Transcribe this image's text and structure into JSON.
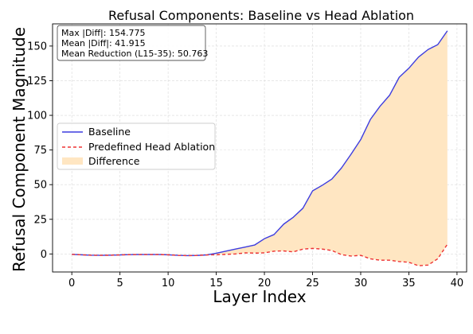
{
  "chart_data": {
    "type": "line",
    "title": "Refusal Components: Baseline vs Head Ablation",
    "xlabel": "Layer Index",
    "ylabel": "Refusal Component Magnitude",
    "xlim": [
      -2,
      41
    ],
    "ylim": [
      -13,
      166
    ],
    "xticks": [
      0,
      5,
      10,
      15,
      20,
      25,
      30,
      35,
      40
    ],
    "yticks": [
      0,
      25,
      50,
      75,
      100,
      125,
      150
    ],
    "grid": true,
    "legend_position": "center-left",
    "stats_box": {
      "position": "top-left",
      "lines": [
        "Max |Diff|: 154.775",
        "Mean |Diff|: 41.915",
        "Mean Reduction (L15-35): 50.763"
      ]
    },
    "x": [
      0,
      1,
      2,
      3,
      4,
      5,
      6,
      7,
      8,
      9,
      10,
      11,
      12,
      13,
      14,
      15,
      16,
      17,
      18,
      19,
      20,
      21,
      22,
      23,
      24,
      25,
      26,
      27,
      28,
      29,
      30,
      31,
      32,
      33,
      34,
      35,
      36,
      37,
      38,
      39
    ],
    "series": [
      {
        "name": "Baseline",
        "color": "#3d3ddf",
        "style": "solid",
        "values": [
          -0.3,
          -0.6,
          -0.9,
          -1.0,
          -0.9,
          -0.7,
          -0.5,
          -0.4,
          -0.4,
          -0.4,
          -0.6,
          -1.0,
          -1.2,
          -1.1,
          -0.7,
          0.5,
          2.0,
          3.5,
          5.0,
          6.5,
          11.0,
          14.0,
          21.5,
          26.5,
          33.0,
          45.5,
          49.5,
          54.0,
          62.0,
          72.0,
          82.5,
          97.0,
          106.5,
          114.5,
          127.5,
          134.0,
          142.0,
          147.5,
          151.0,
          161.0
        ]
      },
      {
        "name": "Predefined Head Ablation",
        "color": "#ee3333",
        "style": "dashed",
        "values": [
          -0.3,
          -0.6,
          -0.9,
          -1.0,
          -0.9,
          -0.7,
          -0.5,
          -0.4,
          -0.4,
          -0.4,
          -0.6,
          -1.0,
          -1.2,
          -1.1,
          -0.7,
          -0.6,
          -0.3,
          0.0,
          0.8,
          0.6,
          0.8,
          2.0,
          2.2,
          1.5,
          3.5,
          4.0,
          3.5,
          2.5,
          -0.5,
          -1.5,
          -1.0,
          -3.5,
          -4.5,
          -4.5,
          -5.5,
          -6.0,
          -8.5,
          -8.0,
          -3.5,
          7.0
        ]
      }
    ],
    "fill_between": {
      "name": "Difference",
      "color": "#ffe6c2"
    }
  }
}
